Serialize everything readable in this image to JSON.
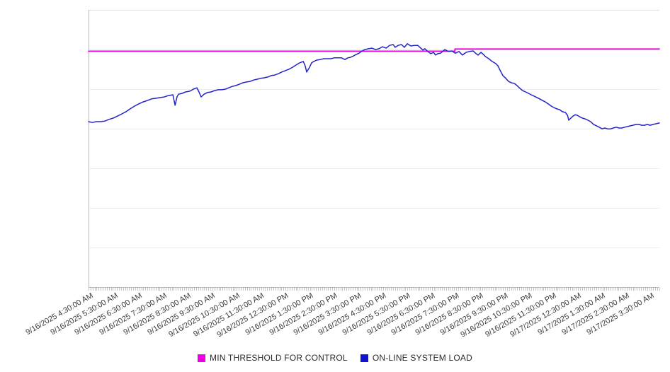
{
  "chart_data": {
    "type": "line",
    "title": "",
    "x_axis": {
      "type": "time",
      "hours_span": 23.42,
      "minor_tick_interval_hours": 0.08333,
      "tick_labels": [
        "9/16/2025 4:30:00 AM",
        "9/16/2025 5:30:00 AM",
        "9/16/2025 6:30:00 AM",
        "9/16/2025 7:30:00 AM",
        "9/16/2025 8:30:00 AM",
        "9/16/2025 9:30:00 AM",
        "9/16/2025 10:30:00 AM",
        "9/16/2025 11:30:00 AM",
        "9/16/2025 12:30:00 PM",
        "9/16/2025 1:30:00 PM",
        "9/16/2025 2:30:00 PM",
        "9/16/2025 3:30:00 PM",
        "9/16/2025 4:30:00 PM",
        "9/16/2025 5:30:00 PM",
        "9/16/2025 6:30:00 PM",
        "9/16/2025 7:30:00 PM",
        "9/16/2025 8:30:00 PM",
        "9/16/2025 9:30:00 PM",
        "9/16/2025 10:30:00 PM",
        "9/16/2025 11:30:00 PM",
        "9/17/2025 12:30:00 AM",
        "9/17/2025 1:30:00 AM",
        "9/17/2025 2:30:00 AM",
        "9/17/2025 3:30:00 AM"
      ]
    },
    "y_axis": {
      "labels_visible": false,
      "note": "no y tick labels shown; values are normalized 0-100 of plot height",
      "gridline_count": 7,
      "ylim": [
        0,
        100
      ]
    },
    "grid": true,
    "legend_position": "bottom-center",
    "series": [
      {
        "name": "MIN THRESHOLD FOR CONTROL",
        "color": "#ef00e2",
        "line_type": "step",
        "points": [
          [
            0,
            85.1
          ],
          [
            15.03,
            85.1
          ],
          [
            15.03,
            85.9
          ],
          [
            23.42,
            85.9
          ]
        ]
      },
      {
        "name": "ON-LINE SYSTEM LOAD",
        "color": "#2323c8",
        "line_type": "line",
        "points": [
          [
            0.0,
            59.7
          ],
          [
            0.15,
            59.4
          ],
          [
            0.32,
            59.7
          ],
          [
            0.49,
            59.7
          ],
          [
            0.67,
            59.9
          ],
          [
            0.84,
            60.5
          ],
          [
            1.02,
            61.0
          ],
          [
            1.19,
            61.7
          ],
          [
            1.37,
            62.5
          ],
          [
            1.54,
            63.3
          ],
          [
            1.71,
            64.3
          ],
          [
            1.89,
            65.3
          ],
          [
            2.06,
            66.1
          ],
          [
            2.24,
            66.8
          ],
          [
            2.41,
            67.3
          ],
          [
            2.59,
            67.9
          ],
          [
            2.76,
            68.1
          ],
          [
            2.94,
            68.4
          ],
          [
            3.11,
            68.6
          ],
          [
            3.28,
            69.1
          ],
          [
            3.46,
            69.4
          ],
          [
            3.55,
            65.6
          ],
          [
            3.63,
            68.6
          ],
          [
            3.69,
            69.6
          ],
          [
            3.84,
            69.9
          ],
          [
            3.98,
            70.4
          ],
          [
            4.16,
            70.7
          ],
          [
            4.3,
            71.4
          ],
          [
            4.45,
            71.9
          ],
          [
            4.53,
            70.4
          ],
          [
            4.62,
            68.6
          ],
          [
            4.74,
            69.6
          ],
          [
            4.88,
            70.2
          ],
          [
            5.03,
            70.4
          ],
          [
            5.17,
            70.9
          ],
          [
            5.32,
            71.2
          ],
          [
            5.46,
            71.2
          ],
          [
            5.61,
            71.4
          ],
          [
            5.75,
            71.9
          ],
          [
            5.9,
            72.4
          ],
          [
            6.04,
            72.7
          ],
          [
            6.19,
            73.2
          ],
          [
            6.33,
            73.7
          ],
          [
            6.48,
            74.0
          ],
          [
            6.63,
            74.2
          ],
          [
            6.77,
            74.7
          ],
          [
            6.92,
            75.0
          ],
          [
            7.06,
            75.3
          ],
          [
            7.21,
            75.5
          ],
          [
            7.35,
            75.8
          ],
          [
            7.5,
            76.3
          ],
          [
            7.64,
            76.5
          ],
          [
            7.79,
            77.0
          ],
          [
            7.93,
            77.6
          ],
          [
            8.08,
            78.1
          ],
          [
            8.22,
            78.6
          ],
          [
            8.37,
            79.3
          ],
          [
            8.51,
            80.1
          ],
          [
            8.66,
            80.9
          ],
          [
            8.81,
            81.4
          ],
          [
            8.89,
            79.8
          ],
          [
            8.95,
            77.6
          ],
          [
            9.07,
            79.3
          ],
          [
            9.15,
            80.9
          ],
          [
            9.24,
            81.4
          ],
          [
            9.36,
            81.9
          ],
          [
            9.5,
            82.1
          ],
          [
            9.65,
            82.4
          ],
          [
            9.79,
            82.4
          ],
          [
            9.94,
            82.4
          ],
          [
            10.08,
            82.7
          ],
          [
            10.23,
            82.7
          ],
          [
            10.38,
            82.7
          ],
          [
            10.52,
            82.1
          ],
          [
            10.64,
            82.7
          ],
          [
            10.75,
            82.9
          ],
          [
            10.87,
            83.4
          ],
          [
            10.98,
            83.9
          ],
          [
            11.1,
            84.4
          ],
          [
            11.19,
            85.0
          ],
          [
            11.33,
            85.7
          ],
          [
            11.48,
            86.0
          ],
          [
            11.63,
            86.2
          ],
          [
            11.77,
            85.7
          ],
          [
            11.92,
            86.0
          ],
          [
            12.06,
            86.7
          ],
          [
            12.21,
            86.2
          ],
          [
            12.35,
            87.2
          ],
          [
            12.5,
            87.5
          ],
          [
            12.58,
            86.5
          ],
          [
            12.7,
            87.2
          ],
          [
            12.84,
            87.5
          ],
          [
            12.96,
            86.5
          ],
          [
            13.08,
            87.8
          ],
          [
            13.22,
            87.0
          ],
          [
            13.37,
            87.2
          ],
          [
            13.51,
            87.2
          ],
          [
            13.63,
            86.2
          ],
          [
            13.72,
            85.5
          ],
          [
            13.8,
            86.0
          ],
          [
            13.92,
            85.0
          ],
          [
            14.04,
            84.2
          ],
          [
            14.15,
            84.7
          ],
          [
            14.24,
            83.7
          ],
          [
            14.33,
            84.2
          ],
          [
            14.44,
            84.4
          ],
          [
            14.62,
            85.7
          ],
          [
            14.76,
            85.0
          ],
          [
            14.91,
            85.2
          ],
          [
            15.05,
            84.4
          ],
          [
            15.2,
            85.0
          ],
          [
            15.34,
            83.7
          ],
          [
            15.49,
            84.7
          ],
          [
            15.63,
            85.0
          ],
          [
            15.78,
            85.2
          ],
          [
            15.9,
            84.2
          ],
          [
            15.98,
            83.7
          ],
          [
            16.1,
            84.7
          ],
          [
            16.19,
            84.0
          ],
          [
            16.28,
            83.2
          ],
          [
            16.42,
            82.4
          ],
          [
            16.56,
            81.4
          ],
          [
            16.71,
            80.6
          ],
          [
            16.8,
            79.8
          ],
          [
            16.88,
            78.3
          ],
          [
            17.0,
            76.3
          ],
          [
            17.12,
            75.3
          ],
          [
            17.23,
            74.2
          ],
          [
            17.35,
            73.7
          ],
          [
            17.47,
            73.5
          ],
          [
            17.58,
            72.7
          ],
          [
            17.7,
            71.7
          ],
          [
            17.81,
            70.9
          ],
          [
            17.93,
            70.4
          ],
          [
            18.05,
            69.9
          ],
          [
            18.16,
            69.4
          ],
          [
            18.28,
            68.9
          ],
          [
            18.4,
            68.4
          ],
          [
            18.51,
            67.9
          ],
          [
            18.63,
            67.3
          ],
          [
            18.74,
            66.8
          ],
          [
            18.86,
            66.1
          ],
          [
            18.98,
            65.3
          ],
          [
            19.09,
            64.8
          ],
          [
            19.21,
            64.3
          ],
          [
            19.33,
            64.0
          ],
          [
            19.44,
            63.3
          ],
          [
            19.56,
            63.0
          ],
          [
            19.65,
            62.0
          ],
          [
            19.7,
            60.2
          ],
          [
            19.79,
            61.0
          ],
          [
            19.88,
            61.7
          ],
          [
            19.97,
            62.2
          ],
          [
            20.05,
            62.0
          ],
          [
            20.14,
            61.5
          ],
          [
            20.26,
            61.0
          ],
          [
            20.37,
            60.7
          ],
          [
            20.49,
            60.2
          ],
          [
            20.6,
            59.7
          ],
          [
            20.72,
            58.7
          ],
          [
            20.84,
            58.2
          ],
          [
            20.95,
            57.7
          ],
          [
            21.07,
            57.1
          ],
          [
            21.18,
            57.4
          ],
          [
            21.3,
            57.1
          ],
          [
            21.42,
            57.1
          ],
          [
            21.53,
            57.4
          ],
          [
            21.65,
            57.7
          ],
          [
            21.76,
            57.4
          ],
          [
            21.88,
            57.4
          ],
          [
            22.0,
            57.7
          ],
          [
            22.11,
            57.9
          ],
          [
            22.23,
            58.2
          ],
          [
            22.34,
            58.4
          ],
          [
            22.46,
            58.7
          ],
          [
            22.58,
            58.7
          ],
          [
            22.69,
            58.4
          ],
          [
            22.81,
            58.4
          ],
          [
            22.92,
            58.7
          ],
          [
            23.04,
            58.4
          ],
          [
            23.16,
            58.7
          ],
          [
            23.27,
            58.9
          ],
          [
            23.42,
            59.2
          ]
        ]
      }
    ],
    "legend": {
      "items": [
        {
          "label": "MIN THRESHOLD FOR CONTROL",
          "color": "#ef00e2"
        },
        {
          "label": "ON-LINE SYSTEM LOAD",
          "color": "#1212d2"
        }
      ]
    },
    "colors": {
      "gridline": "#ededed",
      "axis": "#b9b9b9",
      "tick": "#c6c6c6",
      "label_text": "#3c3c3c"
    }
  }
}
